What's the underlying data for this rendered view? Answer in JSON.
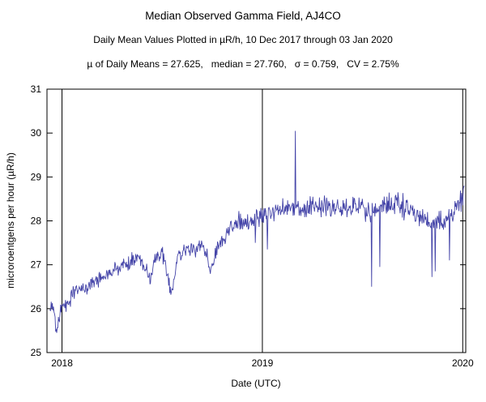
{
  "chart_data": {
    "type": "line",
    "title": "Median Observed Gamma Field, AJ4CO",
    "subtitle": "Daily Mean Values Plotted in µR/h, 10 Dec 2017 through 03 Jan 2020",
    "stats_text": "µ of Daily Means = 27.625,   median = 27.760,   σ = 0.759,   CV = 2.75%",
    "stats": {
      "mean_of_daily_means": 27.625,
      "median": 27.76,
      "sigma": 0.759,
      "cv_percent": 2.75
    },
    "xlabel": "Date (UTC)",
    "ylabel": "microroentgens per hour (µR/h)",
    "xlim": [
      2017.925,
      2020.015
    ],
    "ylim": [
      25,
      31
    ],
    "xticks": [
      2018,
      2019,
      2020
    ],
    "yticks": [
      25,
      26,
      27,
      28,
      29,
      30,
      31
    ],
    "grid": {
      "vertical_at_years": true,
      "horizontal": false
    },
    "line_color": "#4444a8",
    "frame_color": "#000000",
    "series_start": 2017.938,
    "series_end": 2020.008,
    "samples_per_year": 365.25,
    "noise_sd": 0.12,
    "noise_seed": 90125,
    "trend_anchors": [
      [
        2017.938,
        25.95
      ],
      [
        2017.95,
        26.1
      ],
      [
        2017.962,
        25.9
      ],
      [
        2017.972,
        25.5
      ],
      [
        2017.985,
        25.8
      ],
      [
        2018.0,
        26.05
      ],
      [
        2018.03,
        26.1
      ],
      [
        2018.06,
        26.35
      ],
      [
        2018.1,
        26.45
      ],
      [
        2018.14,
        26.55
      ],
      [
        2018.18,
        26.65
      ],
      [
        2018.22,
        26.75
      ],
      [
        2018.26,
        26.85
      ],
      [
        2018.3,
        27.0
      ],
      [
        2018.34,
        27.05
      ],
      [
        2018.38,
        27.15
      ],
      [
        2018.42,
        26.9
      ],
      [
        2018.44,
        26.6
      ],
      [
        2018.46,
        27.1
      ],
      [
        2018.5,
        27.25
      ],
      [
        2018.53,
        26.7
      ],
      [
        2018.545,
        26.3
      ],
      [
        2018.56,
        26.7
      ],
      [
        2018.58,
        27.2
      ],
      [
        2018.62,
        27.35
      ],
      [
        2018.66,
        27.3
      ],
      [
        2018.7,
        27.45
      ],
      [
        2018.73,
        27.1
      ],
      [
        2018.745,
        26.75
      ],
      [
        2018.76,
        27.2
      ],
      [
        2018.8,
        27.55
      ],
      [
        2018.84,
        27.85
      ],
      [
        2018.88,
        28.0
      ],
      [
        2018.92,
        27.95
      ],
      [
        2018.96,
        28.05
      ],
      [
        2019.0,
        28.1
      ],
      [
        2019.06,
        28.2
      ],
      [
        2019.12,
        28.3
      ],
      [
        2019.18,
        28.25
      ],
      [
        2019.24,
        28.35
      ],
      [
        2019.3,
        28.3
      ],
      [
        2019.36,
        28.35
      ],
      [
        2019.42,
        28.25
      ],
      [
        2019.48,
        28.35
      ],
      [
        2019.54,
        28.2
      ],
      [
        2019.6,
        28.3
      ],
      [
        2019.66,
        28.4
      ],
      [
        2019.72,
        28.3
      ],
      [
        2019.78,
        28.1
      ],
      [
        2019.82,
        27.9
      ],
      [
        2019.86,
        28.0
      ],
      [
        2019.9,
        27.95
      ],
      [
        2019.94,
        28.1
      ],
      [
        2019.97,
        28.25
      ],
      [
        2020.0,
        28.55
      ],
      [
        2020.008,
        28.7
      ]
    ],
    "noise_scale_anchors": [
      [
        2017.938,
        0.9
      ],
      [
        2018.8,
        0.9
      ],
      [
        2019.0,
        1.1
      ],
      [
        2019.4,
        1.3
      ],
      [
        2020.008,
        1.4
      ]
    ],
    "spikes": [
      [
        2019.165,
        30.05
      ],
      [
        2019.025,
        27.35
      ],
      [
        2018.965,
        27.5
      ],
      [
        2019.545,
        26.5
      ],
      [
        2019.585,
        26.95
      ],
      [
        2019.845,
        26.72
      ],
      [
        2019.862,
        26.85
      ],
      [
        2019.935,
        27.1
      ]
    ]
  }
}
